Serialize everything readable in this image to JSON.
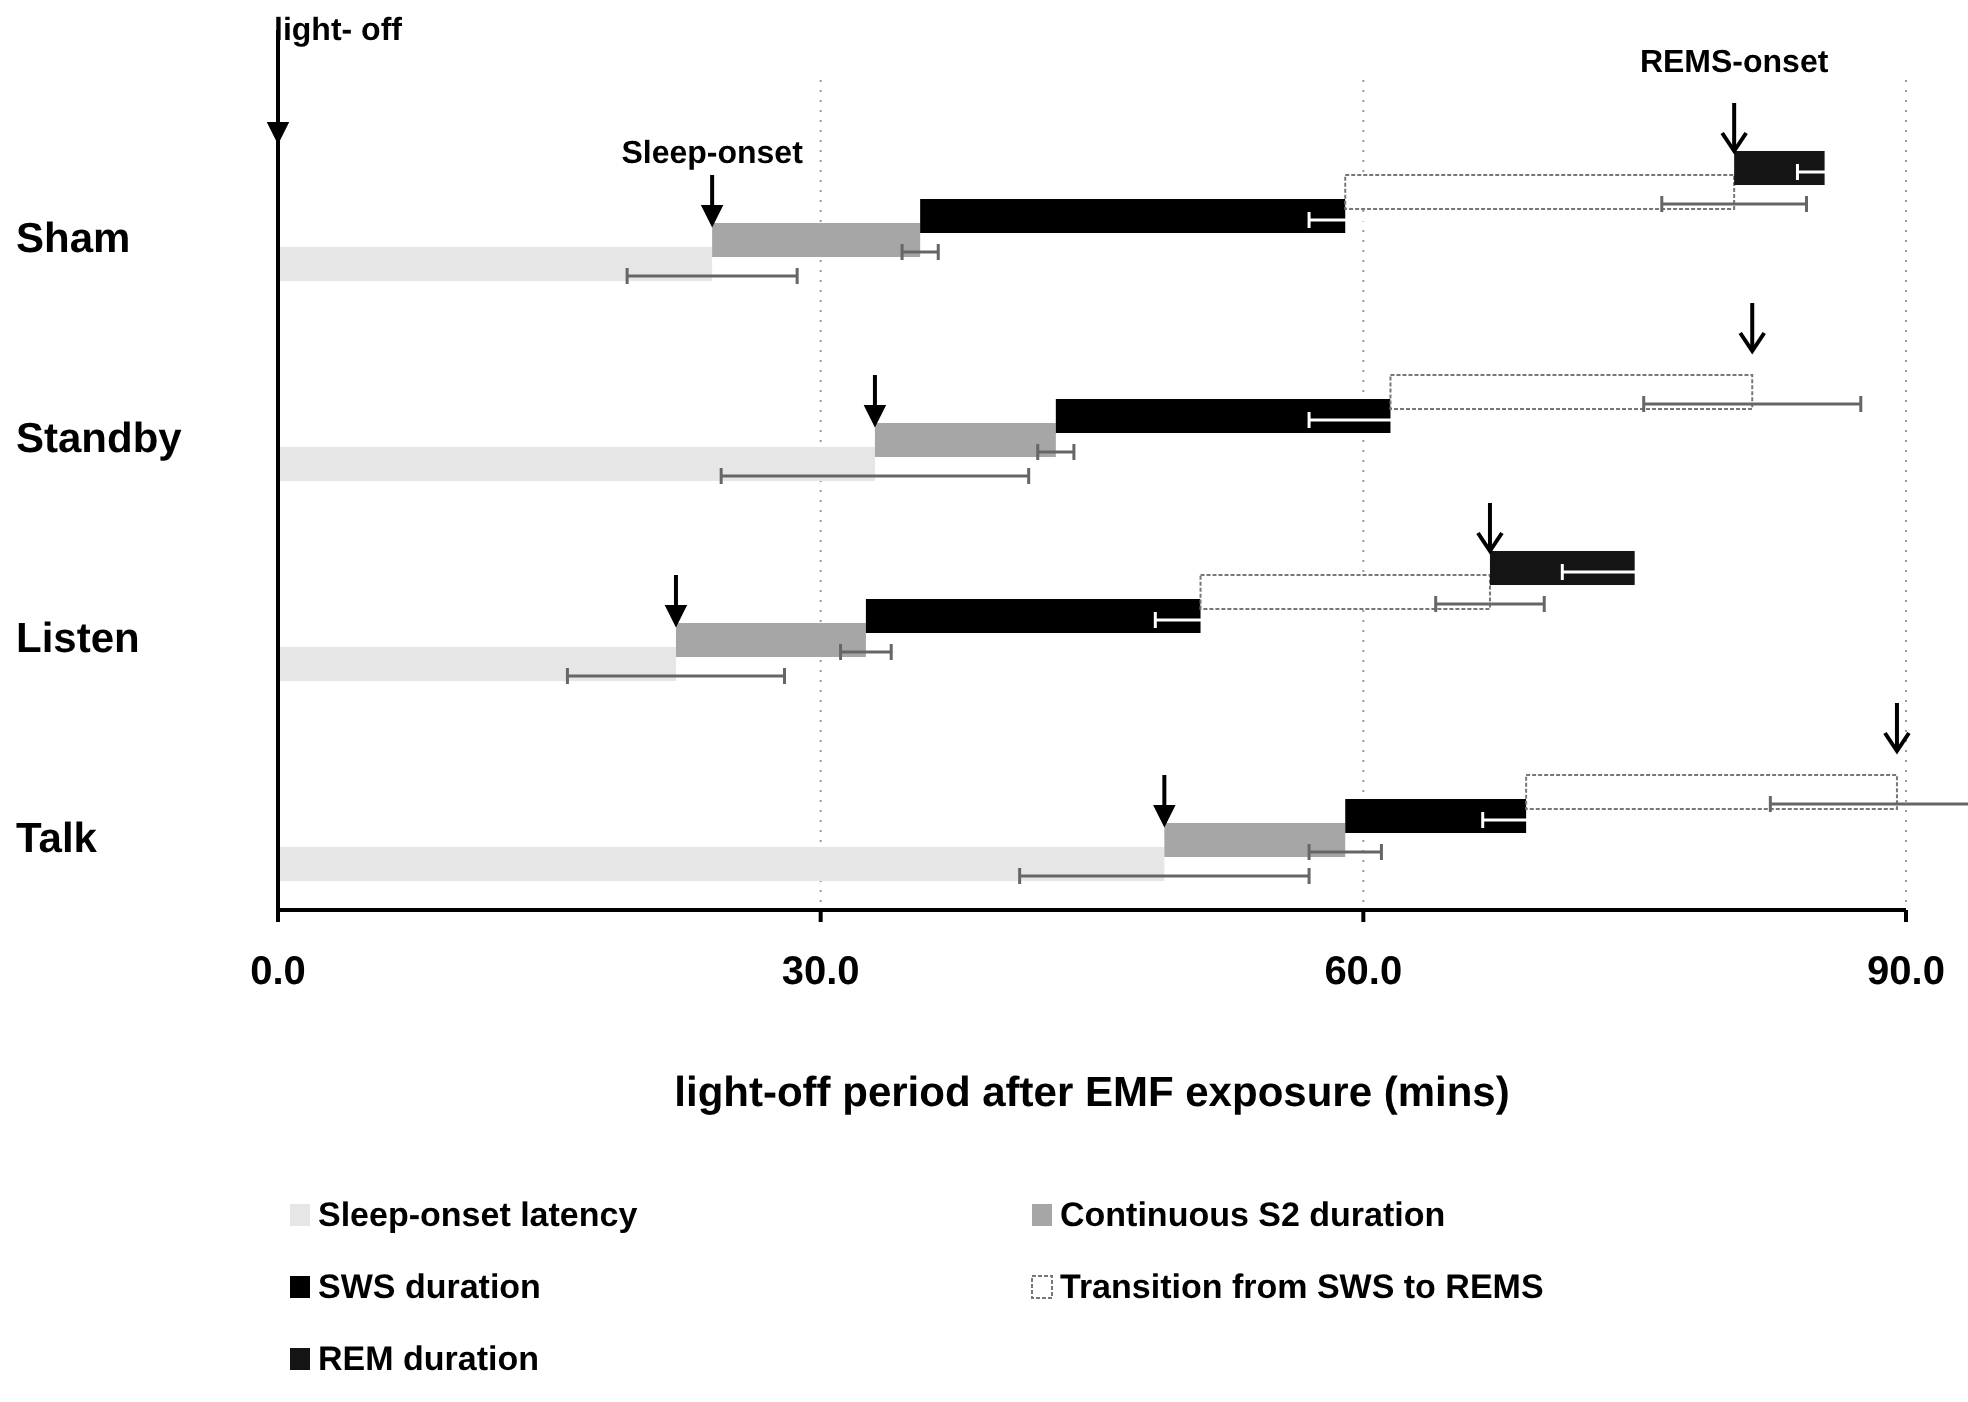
{
  "chart_data": {
    "type": "bar",
    "orientation": "horizontal",
    "stacked": true,
    "categories": [
      "Sham",
      "Standby",
      "Listen",
      "Talk"
    ],
    "series": [
      {
        "name": "Sleep-onset latency",
        "color": "#e6e6e6",
        "values": [
          24,
          33,
          22,
          49
        ],
        "errors": [
          4.7,
          8.5,
          6,
          8
        ]
      },
      {
        "name": "Continuous S2 duration",
        "color": "#a6a6a6",
        "values": [
          11.5,
          10,
          10.5,
          10
        ],
        "errors": [
          1,
          1,
          1.4,
          2
        ]
      },
      {
        "name": "SWS duration",
        "color": "#000000",
        "values": [
          23.5,
          18.5,
          18.5,
          10
        ],
        "errors": [
          2,
          4.5,
          2.5,
          2.4
        ]
      },
      {
        "name": "Transition from SWS to REMS",
        "color": "#ffffff",
        "values": [
          21.5,
          20,
          16,
          20.5
        ],
        "errors": [
          4,
          6,
          3,
          7
        ]
      },
      {
        "name": "REM duration",
        "color": "#141414",
        "values": [
          5,
          null,
          8,
          null
        ],
        "errors": [
          1.5,
          null,
          4,
          null
        ]
      }
    ],
    "xlim": [
      0,
      90
    ],
    "xticks": [
      {
        "value": 0,
        "label": "0.0"
      },
      {
        "value": 30,
        "label": "30.0"
      },
      {
        "value": 60,
        "label": "60.0"
      },
      {
        "value": 90,
        "label": "90.0"
      }
    ],
    "xlabel": "light-off period after EMF exposure (mins)",
    "grid": "x",
    "legend": "bottom",
    "annotations": [
      "light- off",
      "Sleep-onset",
      "REMS-onset"
    ]
  }
}
